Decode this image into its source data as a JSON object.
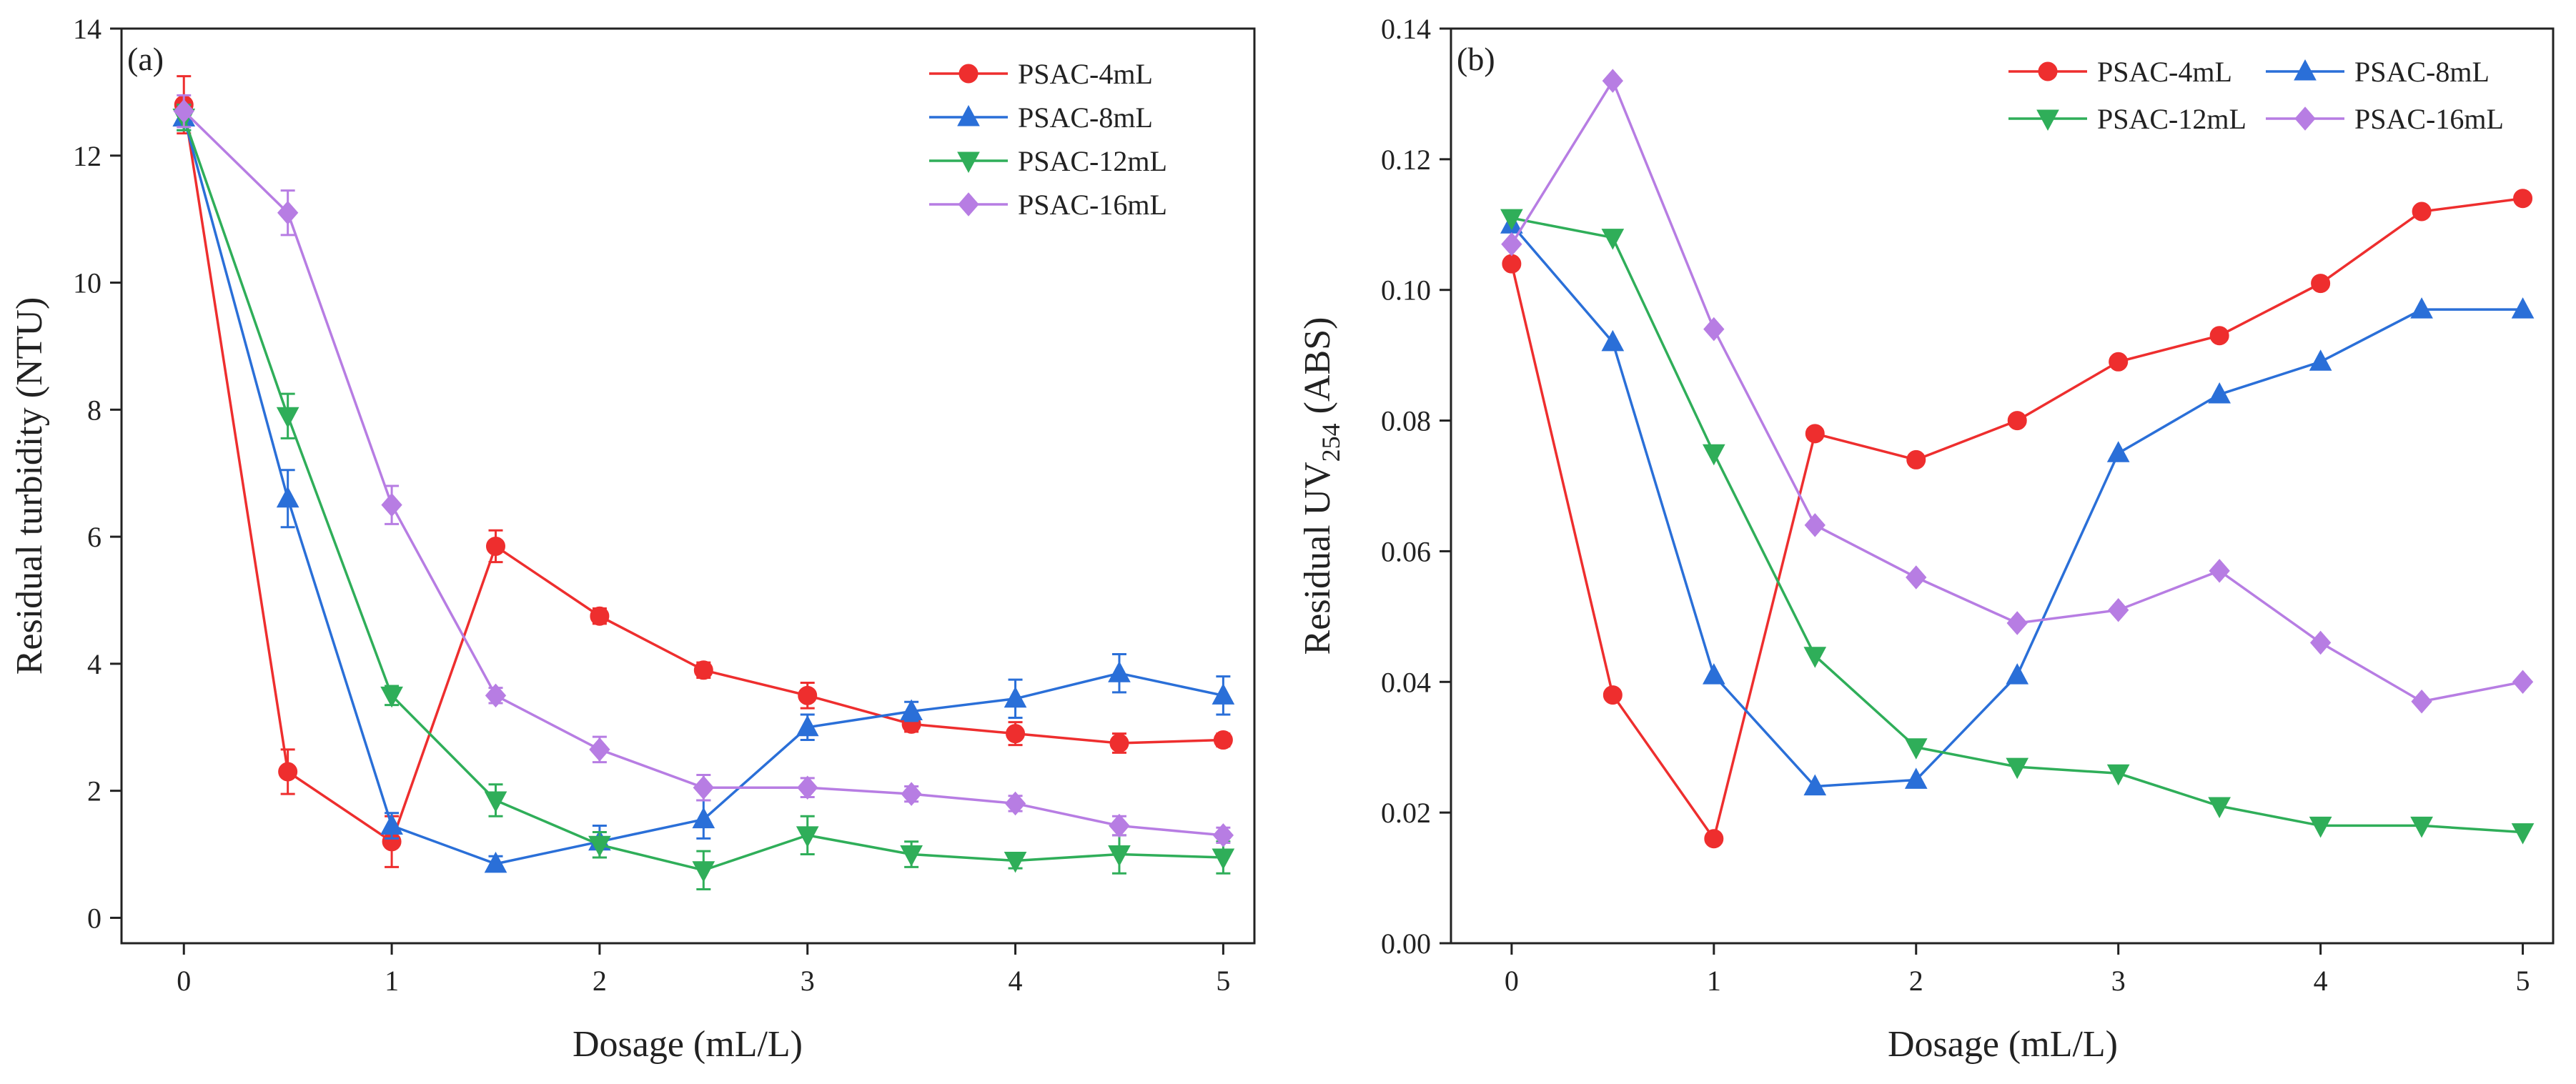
{
  "chart_data": [
    {
      "type": "line",
      "panel_label": "(a)",
      "xlabel": "Dosage (mL/L)",
      "ylabel": "Residual turbidity (NTU)",
      "xlim": [
        -0.3,
        5.15
      ],
      "ylim": [
        -0.4,
        14
      ],
      "xticks": [
        0,
        1,
        2,
        3,
        4,
        5
      ],
      "yticks": [
        0,
        2,
        4,
        6,
        8,
        10,
        12,
        14
      ],
      "ytick_labels": [
        "0",
        "2",
        "4",
        "6",
        "8",
        "10",
        "12",
        "14"
      ],
      "legend_position": "top-right",
      "legend_columns": 1,
      "x": [
        0,
        0.5,
        1,
        1.5,
        2,
        2.5,
        3,
        3.5,
        4,
        4.5,
        5
      ],
      "series": [
        {
          "name": "PSAC-4mL",
          "color": "#ee2e2e",
          "marker": "circle",
          "values": [
            12.8,
            2.3,
            1.2,
            5.85,
            4.75,
            3.9,
            3.5,
            3.05,
            2.9,
            2.75,
            2.8
          ],
          "errors": [
            0.45,
            0.35,
            0.4,
            0.25,
            0.12,
            0.12,
            0.2,
            0.12,
            0.18,
            0.15,
            0.1
          ]
        },
        {
          "name": "PSAC-8mL",
          "color": "#2a6fd8",
          "marker": "triangle-up",
          "values": [
            12.6,
            6.6,
            1.45,
            0.85,
            1.2,
            1.55,
            3.0,
            3.25,
            3.45,
            3.85,
            3.5
          ],
          "errors": [
            0.2,
            0.45,
            0.2,
            0.12,
            0.25,
            0.3,
            0.2,
            0.15,
            0.3,
            0.3,
            0.3
          ]
        },
        {
          "name": "PSAC-12mL",
          "color": "#2fae59",
          "marker": "triangle-down",
          "values": [
            12.6,
            7.9,
            3.5,
            1.85,
            1.15,
            0.75,
            1.3,
            1.0,
            0.9,
            1.0,
            0.95
          ],
          "errors": [
            0.2,
            0.35,
            0.15,
            0.25,
            0.2,
            0.3,
            0.3,
            0.2,
            0.12,
            0.3,
            0.25
          ]
        },
        {
          "name": "PSAC-16mL",
          "color": "#b77de3",
          "marker": "diamond",
          "values": [
            12.7,
            11.1,
            6.5,
            3.5,
            2.65,
            2.05,
            2.05,
            1.95,
            1.8,
            1.45,
            1.3
          ],
          "errors": [
            0.25,
            0.35,
            0.3,
            0.12,
            0.2,
            0.2,
            0.15,
            0.12,
            0.12,
            0.15,
            0.12
          ]
        }
      ]
    },
    {
      "type": "line",
      "panel_label": "(b)",
      "xlabel": "Dosage (mL/L)",
      "ylabel_main": "Residual UV",
      "ylabel_sub": "254",
      "ylabel_suffix": " (ABS)",
      "xlim": [
        -0.3,
        5.15
      ],
      "ylim": [
        0,
        0.14
      ],
      "xticks": [
        0,
        1,
        2,
        3,
        4,
        5
      ],
      "yticks": [
        0,
        0.02,
        0.04,
        0.06,
        0.08,
        0.1,
        0.12,
        0.14
      ],
      "ytick_labels": [
        "0.00",
        "0.02",
        "0.04",
        "0.06",
        "0.08",
        "0.10",
        "0.12",
        "0.14"
      ],
      "legend_position": "top-right",
      "legend_columns": 2,
      "x": [
        0,
        0.5,
        1,
        1.5,
        2,
        2.5,
        3,
        3.5,
        4,
        4.5,
        5
      ],
      "series": [
        {
          "name": "PSAC-4mL",
          "color": "#ee2e2e",
          "marker": "circle",
          "values": [
            0.104,
            0.038,
            0.016,
            0.078,
            0.074,
            0.08,
            0.089,
            0.093,
            0.101,
            0.112,
            0.114
          ]
        },
        {
          "name": "PSAC-8mL",
          "color": "#2a6fd8",
          "marker": "triangle-up",
          "values": [
            0.11,
            0.092,
            0.041,
            0.024,
            0.025,
            0.041,
            0.075,
            0.084,
            0.089,
            0.097,
            0.097
          ]
        },
        {
          "name": "PSAC-12mL",
          "color": "#2fae59",
          "marker": "triangle-down",
          "values": [
            0.111,
            0.108,
            0.075,
            0.044,
            0.03,
            0.027,
            0.026,
            0.021,
            0.018,
            0.018,
            0.017
          ]
        },
        {
          "name": "PSAC-16mL",
          "color": "#b77de3",
          "marker": "diamond",
          "values": [
            0.107,
            0.132,
            0.094,
            0.064,
            0.056,
            0.049,
            0.051,
            0.057,
            0.046,
            0.037,
            0.04
          ]
        }
      ]
    }
  ]
}
